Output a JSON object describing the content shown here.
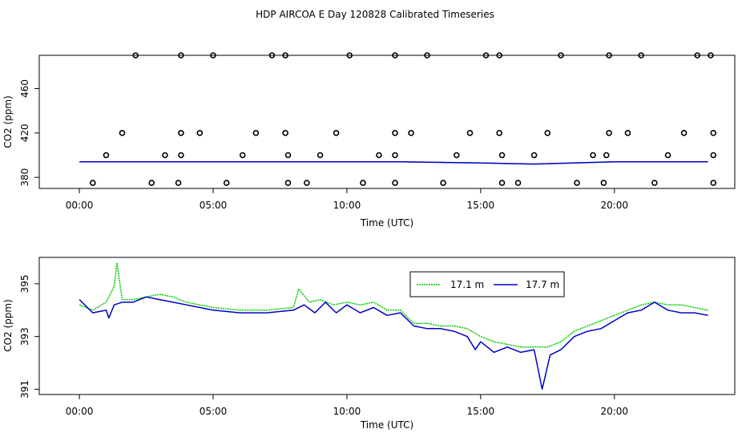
{
  "title": "HDP AIRCOA E  Day 120828  Calibrated Timeseries",
  "colors": {
    "green": "#00cc00",
    "blue": "#0000cc",
    "points": "#000000"
  },
  "chart_data": [
    {
      "type": "line",
      "xlabel": "Time (UTC)",
      "ylabel": "CO2 (ppm)",
      "x_unit": "hours UTC",
      "xlim": [
        -1.5,
        24.5
      ],
      "ylim": [
        370,
        490
      ],
      "x_ticks": [
        0,
        5,
        10,
        15,
        20
      ],
      "x_tick_labels": [
        "00:00",
        "05:00",
        "10:00",
        "15:00",
        "20:00"
      ],
      "y_ticks": [
        380,
        420,
        460
      ],
      "y_tick_labels": [
        "380",
        "420",
        "460"
      ],
      "grid": false,
      "series": [
        {
          "color": "green",
          "x": [
            0,
            4,
            8,
            12,
            15,
            17,
            20,
            23.5
          ],
          "y": [
            394,
            394,
            394,
            394,
            393,
            392,
            394,
            394
          ]
        },
        {
          "color": "blue",
          "x": [
            0,
            4,
            8,
            12,
            15,
            17,
            20,
            23.5
          ],
          "y": [
            394,
            394,
            394,
            394,
            393,
            392,
            394,
            394
          ]
        }
      ],
      "scatter_points": {
        "x": [
          2.1,
          3.8,
          5.0,
          7.2,
          7.7,
          10.1,
          11.8,
          13.0,
          15.2,
          15.7,
          18.0,
          19.8,
          21.0,
          23.1,
          23.6,
          1.6,
          3.8,
          4.5,
          6.6,
          7.7,
          9.6,
          11.8,
          12.4,
          14.6,
          15.7,
          17.5,
          19.8,
          20.5,
          22.6,
          23.7,
          1.0,
          3.2,
          3.8,
          6.1,
          7.8,
          9.0,
          11.2,
          11.8,
          14.1,
          15.8,
          17.0,
          19.2,
          19.7,
          22.0,
          23.7,
          0.5,
          2.7,
          3.7,
          5.5,
          7.8,
          8.5,
          10.6,
          11.8,
          13.6,
          15.8,
          16.4,
          18.6,
          19.6,
          21.5,
          23.7
        ],
        "y": [
          490,
          490,
          490,
          490,
          490,
          490,
          490,
          490,
          490,
          490,
          490,
          490,
          490,
          490,
          490,
          420,
          420,
          420,
          420,
          420,
          420,
          420,
          420,
          420,
          420,
          420,
          420,
          420,
          420,
          420,
          400,
          400,
          400,
          400,
          400,
          400,
          400,
          400,
          400,
          400,
          400,
          400,
          400,
          400,
          400,
          375,
          375,
          375,
          375,
          375,
          375,
          375,
          375,
          375,
          375,
          375,
          375,
          375,
          375,
          375
        ]
      }
    },
    {
      "type": "line",
      "xlabel": "Time (UTC)",
      "ylabel": "CO2 (ppm)",
      "x_unit": "hours UTC",
      "xlim": [
        -1.5,
        24.5
      ],
      "ylim": [
        390.8,
        396.0
      ],
      "x_ticks": [
        0,
        5,
        10,
        15,
        20
      ],
      "x_tick_labels": [
        "00:00",
        "05:00",
        "10:00",
        "15:00",
        "20:00"
      ],
      "y_ticks": [
        391,
        393,
        395
      ],
      "y_tick_labels": [
        "391",
        "393",
        "395"
      ],
      "grid": false,
      "legend": {
        "position": "top-right",
        "entries": [
          "17.1 m",
          "17.7 m"
        ]
      },
      "series": [
        {
          "name": "17.1 m",
          "color": "green",
          "x": [
            0,
            0.5,
            1.0,
            1.3,
            1.4,
            1.6,
            2.0,
            2.5,
            3.0,
            3.5,
            4.0,
            5.0,
            6.0,
            7.0,
            8.0,
            8.2,
            8.6,
            9.0,
            9.5,
            10.0,
            10.5,
            11.0,
            11.5,
            12.0,
            12.5,
            13.0,
            13.5,
            14.0,
            14.5,
            15.0,
            15.5,
            16.0,
            16.5,
            17.0,
            17.5,
            18.0,
            18.5,
            19.0,
            19.5,
            20.0,
            20.5,
            21.0,
            21.5,
            22.0,
            22.5,
            23.0,
            23.5
          ],
          "y": [
            394.2,
            394.0,
            394.3,
            394.9,
            395.8,
            394.4,
            394.4,
            394.5,
            394.6,
            394.5,
            394.3,
            394.1,
            394.0,
            394.0,
            394.1,
            394.8,
            394.3,
            394.4,
            394.2,
            394.3,
            394.2,
            394.3,
            394.0,
            394.0,
            393.5,
            393.5,
            393.4,
            393.4,
            393.3,
            393.0,
            392.8,
            392.7,
            392.6,
            392.6,
            392.6,
            392.8,
            393.2,
            393.4,
            393.6,
            393.8,
            394.0,
            394.2,
            394.3,
            394.2,
            394.2,
            394.1,
            394.0
          ]
        },
        {
          "name": "17.7 m",
          "color": "blue",
          "x": [
            0,
            0.5,
            1.0,
            1.1,
            1.3,
            1.6,
            2.0,
            2.5,
            3.0,
            3.5,
            4.0,
            5.0,
            6.0,
            7.0,
            8.0,
            8.4,
            8.8,
            9.2,
            9.6,
            10.0,
            10.5,
            11.0,
            11.5,
            12.0,
            12.5,
            13.0,
            13.5,
            14.0,
            14.5,
            14.8,
            15.0,
            15.5,
            16.0,
            16.5,
            17.0,
            17.3,
            17.6,
            18.0,
            18.5,
            19.0,
            19.5,
            20.0,
            20.5,
            21.0,
            21.5,
            22.0,
            22.5,
            23.0,
            23.5
          ],
          "y": [
            394.4,
            393.9,
            394.0,
            393.7,
            394.2,
            394.3,
            394.3,
            394.5,
            394.4,
            394.3,
            394.2,
            394.0,
            393.9,
            393.9,
            394.0,
            394.2,
            393.9,
            394.3,
            393.9,
            394.2,
            393.9,
            394.1,
            393.8,
            393.9,
            393.4,
            393.3,
            393.3,
            393.2,
            393.0,
            392.5,
            392.8,
            392.4,
            392.6,
            392.4,
            392.5,
            391.0,
            392.3,
            392.5,
            393.0,
            393.2,
            393.3,
            393.6,
            393.9,
            394.0,
            394.3,
            394.0,
            393.9,
            393.9,
            393.8
          ]
        }
      ]
    }
  ]
}
